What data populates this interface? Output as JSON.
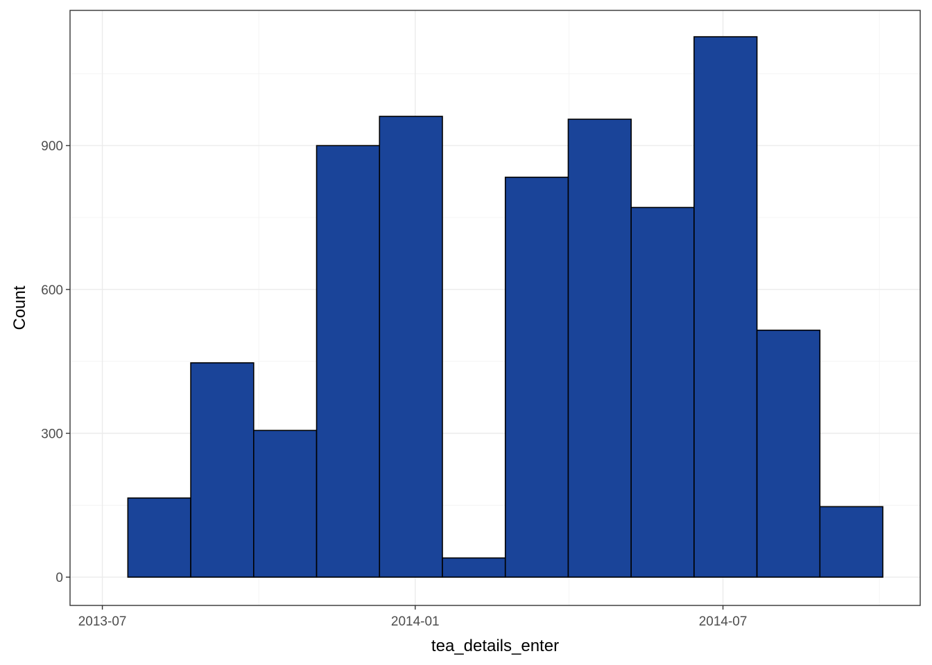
{
  "chart_data": {
    "type": "bar",
    "title": "",
    "xlabel": "tea_details_enter",
    "ylabel": "Count",
    "x_ticks": [
      "2013-07",
      "2014-01",
      "2014-07"
    ],
    "y_ticks": [
      0,
      300,
      600,
      900
    ],
    "ylim": [
      -59,
      1182
    ],
    "xlim": [
      "2013-06-12",
      "2014-10-25"
    ],
    "grid": true,
    "bins": [
      {
        "start": "2013-07-16",
        "end": "2013-08-22",
        "count": 165
      },
      {
        "start": "2013-08-22",
        "end": "2013-09-28",
        "count": 447
      },
      {
        "start": "2013-09-28",
        "end": "2013-11-04",
        "count": 306
      },
      {
        "start": "2013-11-04",
        "end": "2013-12-11",
        "count": 900
      },
      {
        "start": "2013-12-11",
        "end": "2014-01-17",
        "count": 961
      },
      {
        "start": "2014-01-17",
        "end": "2014-02-23",
        "count": 40
      },
      {
        "start": "2014-02-23",
        "end": "2014-04-01",
        "count": 834
      },
      {
        "start": "2014-04-01",
        "end": "2014-05-08",
        "count": 955
      },
      {
        "start": "2014-05-08",
        "end": "2014-06-14",
        "count": 771
      },
      {
        "start": "2014-06-14",
        "end": "2014-07-21",
        "count": 1127
      },
      {
        "start": "2014-07-21",
        "end": "2014-08-27",
        "count": 515
      },
      {
        "start": "2014-08-27",
        "end": "2014-10-03",
        "count": 147
      }
    ]
  },
  "colors": {
    "bar_fill": "#1a4499",
    "bar_stroke": "#000000",
    "grid_major": "#ebebeb",
    "grid_minor": "#f2f2f2",
    "panel_border": "#333333",
    "tick_text": "#4d4d4d"
  }
}
